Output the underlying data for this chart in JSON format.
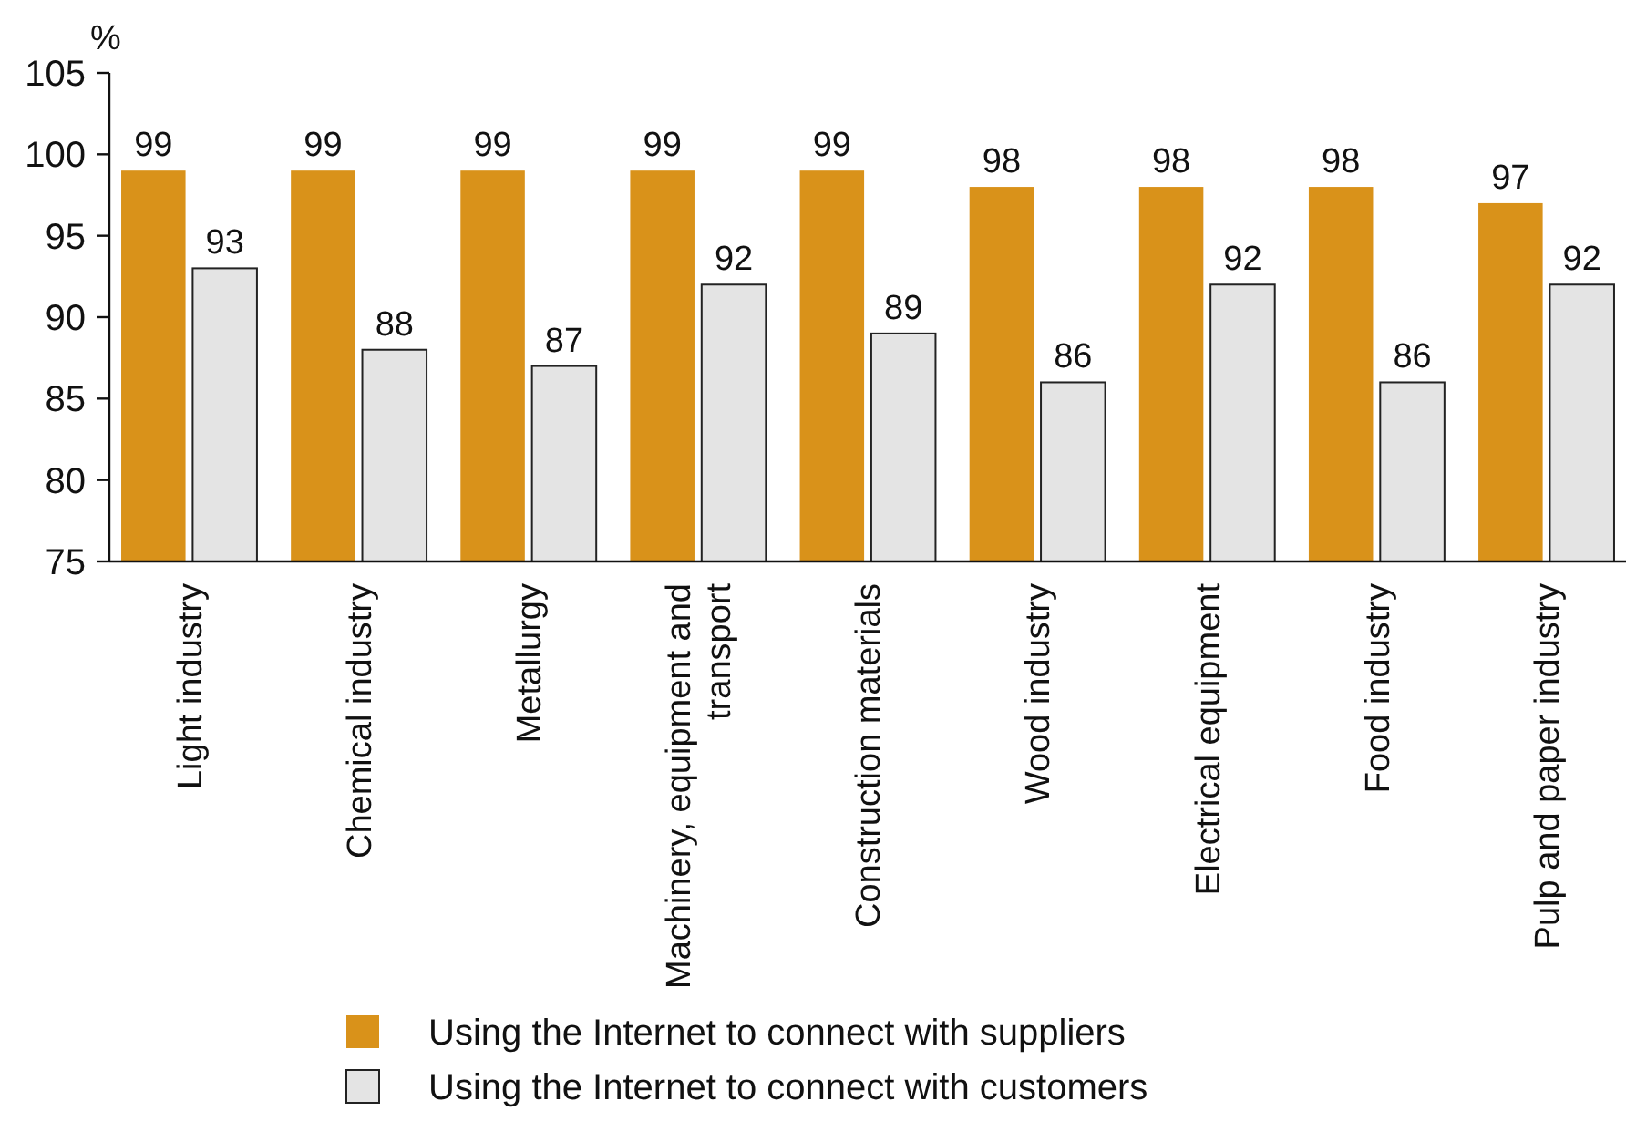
{
  "chart_data": {
    "type": "bar",
    "ylabel": "%",
    "categories": [
      "Light industry",
      "Chemical industry",
      "Metallurgy",
      "Machinery, equipment and transport",
      "Construction materials",
      "Wood industry",
      "Electrical equipment",
      "Food industry",
      "Pulp and paper industry"
    ],
    "series": [
      {
        "name": "Using the Internet to connect with suppliers",
        "color": "#d9921a",
        "values": [
          99,
          99,
          99,
          99,
          99,
          98,
          98,
          98,
          97
        ]
      },
      {
        "name": "Using the Internet to connect with customers",
        "color": "#e4e4e4",
        "values": [
          93,
          88,
          87,
          92,
          89,
          86,
          92,
          86,
          92
        ]
      }
    ],
    "ylim": [
      75,
      105
    ],
    "yticks": [
      75,
      80,
      85,
      90,
      95,
      100,
      105
    ],
    "data_labels": true,
    "legend": "bottom",
    "grid": false
  }
}
